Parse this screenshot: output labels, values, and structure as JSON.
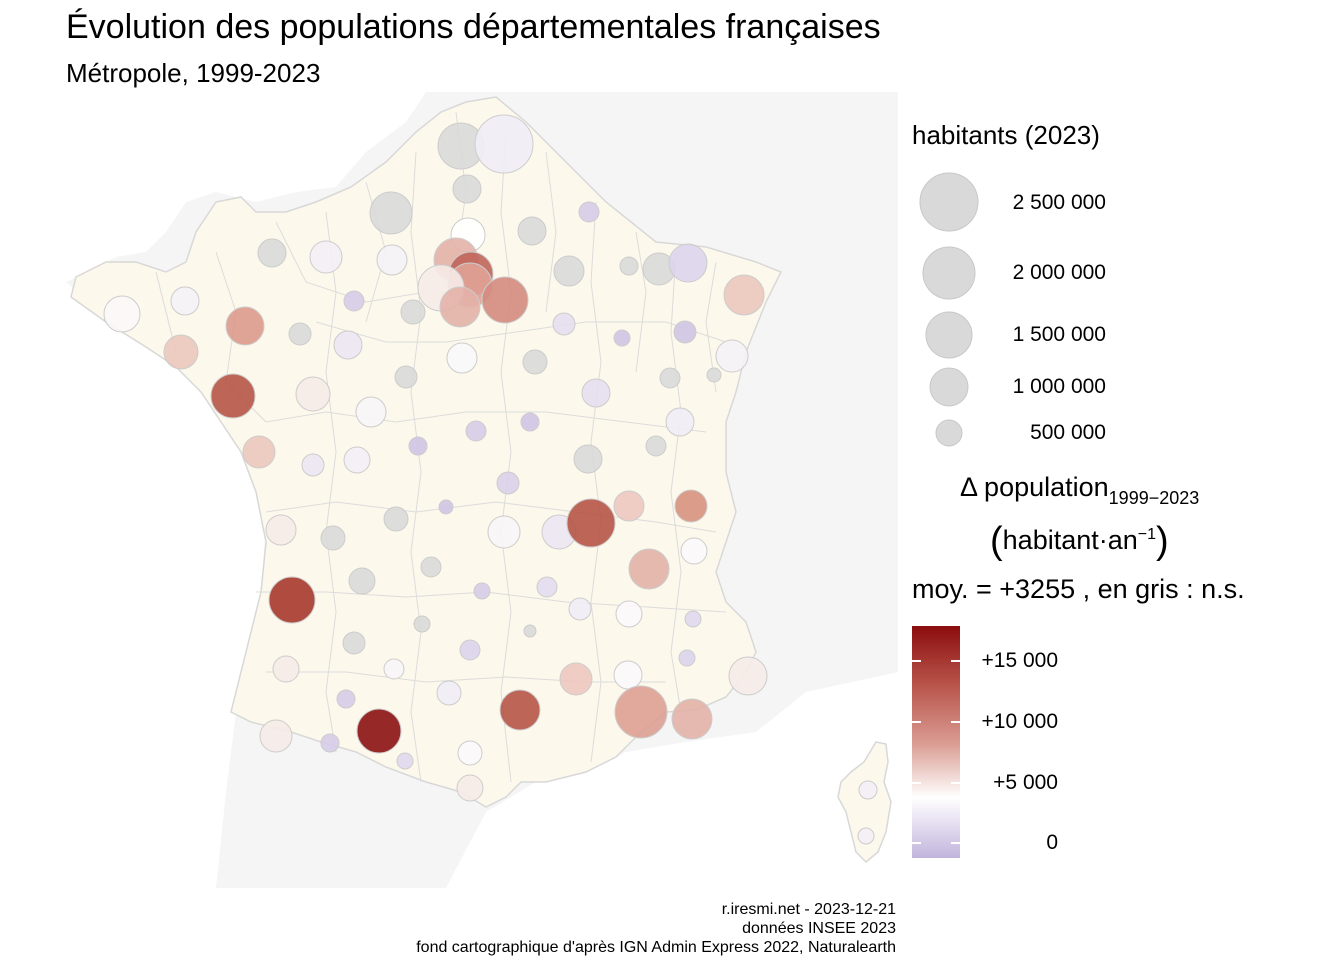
{
  "title": "Évolution des populations départementales françaises",
  "subtitle": "Métropole, 1999-2023",
  "legend_size": {
    "title": "habitants (2023)",
    "items": [
      {
        "label": "2 500 000",
        "value": 2500000
      },
      {
        "label": "2 000 000",
        "value": 2000000
      },
      {
        "label": "1 500 000",
        "value": 1500000
      },
      {
        "label": "1 000 000",
        "value": 1000000
      },
      {
        "label": "500 000",
        "value": 500000
      }
    ]
  },
  "legend_color": {
    "title_main": "Δ population",
    "title_sub": "1999−2023",
    "unit_left": "habitant",
    "unit_dot": "·",
    "unit_right": "an",
    "unit_exp": "−1",
    "paren_open": "(",
    "paren_close": ")",
    "mean_text": "moy. = +3255 , en gris : n.s.",
    "ticks": [
      {
        "label": "+15 000",
        "value": 15000
      },
      {
        "label": "+10 000",
        "value": 10000
      },
      {
        "label": "+5 000",
        "value": 5000
      },
      {
        "label": "0",
        "value": 0
      }
    ],
    "colors": {
      "max": "#8b0d0d",
      "high": "#b8534a",
      "mid": "#d99a90",
      "zero_ref": "#ffffff",
      "min": "#c2b4dc",
      "ns": "#d9d9d9"
    }
  },
  "caption": {
    "line1": "r.iresmi.net - 2023-12-21",
    "line2": "données INSEE 2023",
    "line3": "fond cartographique d'après IGN Admin Express 2022, Naturalearth"
  }
}
